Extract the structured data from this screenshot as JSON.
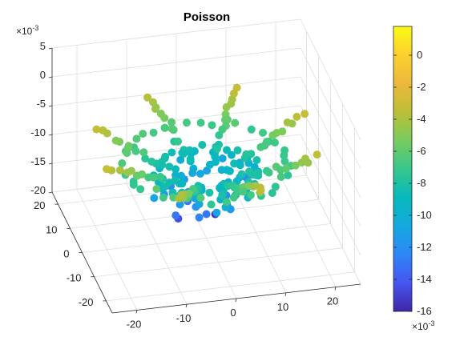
{
  "chart_data": {
    "type": "scatter",
    "subtype": "scatter3",
    "title": "Poisson",
    "x": {
      "ticks": [
        -20,
        -10,
        0,
        10,
        20
      ],
      "tick_labels": [
        "-20",
        "-10",
        "0",
        "10",
        "20"
      ],
      "range": [
        -25,
        25
      ]
    },
    "y": {
      "ticks": [
        -20,
        -10,
        0,
        10,
        20
      ],
      "tick_labels": [
        "-20",
        "-10",
        "0",
        "10",
        "20"
      ],
      "range": [
        -25,
        25
      ]
    },
    "z": {
      "ticks": [
        -0.02,
        -0.015,
        -0.01,
        -0.005,
        0,
        0.005
      ],
      "tick_labels": [
        "-20",
        "-15",
        "-10",
        "-5",
        "0",
        "5"
      ],
      "exponent_label": "×10",
      "exponent_power": "-3",
      "range": [
        -0.02,
        0.005
      ]
    },
    "colorbar": {
      "ticks": [
        0,
        -0.002,
        -0.004,
        -0.006,
        -0.008,
        -0.01,
        -0.012,
        -0.014,
        -0.016
      ],
      "tick_labels": [
        "0",
        "-2",
        "-4",
        "-6",
        "-8",
        "-10",
        "-12",
        "-14",
        "-16"
      ],
      "exponent_label": "×10",
      "exponent_power": "-3",
      "range": [
        -0.016,
        0.0018
      ],
      "colormap": "parula"
    },
    "grid": true,
    "structure": {
      "center_z": -0.0115,
      "arms": 8,
      "arm_inner_radius": 5,
      "arm_outer_radius": 22,
      "arm_inner_z": -0.0095,
      "arm_outer_z": -0.0035,
      "arm_samples": 16,
      "rings": [
        {
          "radius": 16,
          "z": -0.0068
        },
        {
          "radius": 10,
          "z": -0.0088
        }
      ],
      "ring_samples": 40,
      "inner_cloud_count": 40
    },
    "outliers": [
      {
        "x": 1.5,
        "y": -1.2,
        "z": -0.0155
      },
      {
        "x": -6.5,
        "y": -3.5,
        "z": -0.0145
      },
      {
        "x": 5.5,
        "y": 7.5,
        "z": -0.0145
      },
      {
        "x": -7.5,
        "y": -5.5,
        "z": -0.013
      },
      {
        "x": -3.5,
        "y": -8.5,
        "z": -0.0125
      }
    ],
    "points": []
  }
}
